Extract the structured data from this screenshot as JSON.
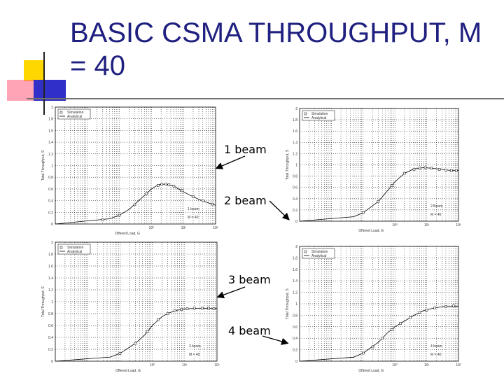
{
  "slide": {
    "title": "BASIC CSMA THROUGHPUT, M = 40"
  },
  "plots": [
    {
      "id": "p1",
      "label": "1 beam",
      "yticks": [
        "2",
        "1.8",
        "1.6",
        "1.4",
        "1.2",
        "1",
        "0.8",
        "0.6",
        "0.4",
        "0.2",
        "0"
      ],
      "xticks": [
        "10⁰",
        "10¹",
        "10²"
      ],
      "xlabel": "Offered Load, G",
      "ylabel": "Total Throughput, S",
      "legend": [
        "Simulation",
        "Analytical"
      ],
      "beams_text": "1 beam",
      "m_text": "M = 40",
      "curve": [
        [
          0.001,
          0.0
        ],
        [
          0.05,
          0.09
        ],
        [
          0.1,
          0.15
        ],
        [
          0.2,
          0.25
        ],
        [
          0.4,
          0.4
        ],
        [
          0.7,
          0.52
        ],
        [
          1,
          0.6
        ],
        [
          1.5,
          0.66
        ],
        [
          2,
          0.68
        ],
        [
          3,
          0.68
        ],
        [
          5,
          0.65
        ],
        [
          8,
          0.58
        ],
        [
          15,
          0.5
        ],
        [
          30,
          0.42
        ],
        [
          60,
          0.36
        ],
        [
          100,
          0.32
        ]
      ],
      "points": [
        [
          0.03,
          0.07
        ],
        [
          0.1,
          0.15
        ],
        [
          0.3,
          0.33
        ],
        [
          0.7,
          0.52
        ],
        [
          1.6,
          0.66
        ],
        [
          2.1,
          0.68
        ],
        [
          2.8,
          0.68
        ],
        [
          3.5,
          0.67
        ],
        [
          5,
          0.65
        ],
        [
          9,
          0.57
        ],
        [
          20,
          0.47
        ],
        [
          40,
          0.4
        ],
        [
          80,
          0.34
        ]
      ]
    },
    {
      "id": "p2",
      "label": "2 beam",
      "yticks": [
        "2",
        "1.8",
        "1.6",
        "1.4",
        "1.2",
        "1",
        "0.8",
        "0.6",
        "0.4",
        "0.2",
        "0"
      ],
      "xticks": [
        "10⁰",
        "10¹",
        "10²"
      ],
      "xlabel": "Offered Load, G",
      "ylabel": "Total Throughput, S",
      "legend": [
        "Simulation",
        "Analytical"
      ],
      "beams_text": "2 Beam",
      "m_text": "M = 40",
      "curve": [
        [
          0.001,
          0.0
        ],
        [
          0.05,
          0.08
        ],
        [
          0.1,
          0.15
        ],
        [
          0.3,
          0.35
        ],
        [
          0.6,
          0.55
        ],
        [
          1,
          0.7
        ],
        [
          2,
          0.85
        ],
        [
          4,
          0.93
        ],
        [
          8,
          0.95
        ],
        [
          15,
          0.94
        ],
        [
          30,
          0.92
        ],
        [
          60,
          0.9
        ],
        [
          100,
          0.9
        ]
      ],
      "points": [
        [
          0.1,
          0.15
        ],
        [
          0.3,
          0.35
        ],
        [
          0.8,
          0.63
        ],
        [
          2,
          0.85
        ],
        [
          4,
          0.92
        ],
        [
          6,
          0.94
        ],
        [
          9,
          0.95
        ],
        [
          14,
          0.94
        ],
        [
          25,
          0.92
        ],
        [
          40,
          0.91
        ],
        [
          60,
          0.9
        ],
        [
          85,
          0.9
        ]
      ]
    },
    {
      "id": "p3",
      "label": "3 beam",
      "yticks": [
        "2",
        "1.8",
        "1.6",
        "1.4",
        "1.2",
        "1",
        "0.8",
        "0.6",
        "0.4",
        "0.2",
        "0"
      ],
      "xticks": [
        "10⁰",
        "10¹",
        "10²"
      ],
      "xlabel": "Offered Load, G",
      "ylabel": "Total Throughput, S",
      "legend": [
        "Simulation",
        "Analytical"
      ],
      "beams_text": "3 beam",
      "m_text": "M = 40",
      "curve": [
        [
          0.001,
          0.0
        ],
        [
          0.05,
          0.07
        ],
        [
          0.1,
          0.13
        ],
        [
          0.3,
          0.3
        ],
        [
          0.6,
          0.45
        ],
        [
          1,
          0.6
        ],
        [
          2,
          0.75
        ],
        [
          3,
          0.8
        ],
        [
          5,
          0.85
        ],
        [
          10,
          0.88
        ],
        [
          30,
          0.89
        ],
        [
          100,
          0.89
        ]
      ],
      "points": [
        [
          0.1,
          0.13
        ],
        [
          0.3,
          0.3
        ],
        [
          0.7,
          0.5
        ],
        [
          1.5,
          0.7
        ],
        [
          3,
          0.8
        ],
        [
          5,
          0.85
        ],
        [
          8,
          0.87
        ],
        [
          12,
          0.88
        ],
        [
          20,
          0.89
        ],
        [
          35,
          0.89
        ],
        [
          55,
          0.89
        ],
        [
          80,
          0.88
        ]
      ]
    },
    {
      "id": "p4",
      "label": "4 beam",
      "yticks": [
        "2",
        "1.8",
        "1.6",
        "1.4",
        "1.2",
        "1",
        "0.8",
        "0.6",
        "0.4",
        "0.2",
        "0"
      ],
      "xticks": [
        "10⁰",
        "10¹",
        "10²"
      ],
      "xlabel": "Offered Load, G",
      "ylabel": "Total Throughput, S",
      "legend": [
        "Simulation",
        "Analytical"
      ],
      "beams_text": "4 beam",
      "m_text": "M = 40",
      "curve": [
        [
          0.001,
          0.0
        ],
        [
          0.05,
          0.07
        ],
        [
          0.1,
          0.14
        ],
        [
          0.3,
          0.33
        ],
        [
          0.6,
          0.5
        ],
        [
          1,
          0.6
        ],
        [
          2,
          0.7
        ],
        [
          4,
          0.8
        ],
        [
          8,
          0.88
        ],
        [
          15,
          0.92
        ],
        [
          30,
          0.95
        ],
        [
          100,
          0.96
        ]
      ],
      "points": [
        [
          0.1,
          0.14
        ],
        [
          0.2,
          0.25
        ],
        [
          0.4,
          0.4
        ],
        [
          0.8,
          0.55
        ],
        [
          1.5,
          0.66
        ],
        [
          3,
          0.76
        ],
        [
          6,
          0.85
        ],
        [
          10,
          0.89
        ],
        [
          18,
          0.93
        ],
        [
          40,
          0.95
        ],
        [
          70,
          0.96
        ]
      ]
    }
  ],
  "annotations": [
    "1 beam",
    "2 beam",
    "3 beam",
    "4 beam"
  ]
}
